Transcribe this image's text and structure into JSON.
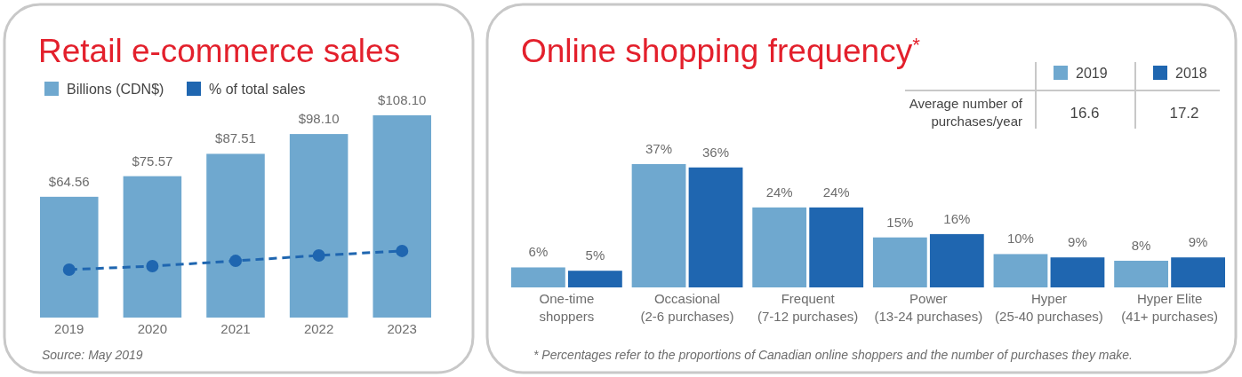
{
  "chart_data": [
    {
      "type": "bar",
      "title": "Retail e-commerce sales",
      "categories": [
        "2019",
        "2020",
        "2021",
        "2022",
        "2023"
      ],
      "legend": "top",
      "series": [
        {
          "name": "Billions (CDN$)",
          "color": "#6fa8cf",
          "values": [
            64.56,
            75.57,
            87.51,
            98.1,
            108.1
          ],
          "value_labels": [
            "$64.56",
            "$75.57",
            "$87.51",
            "$98.10",
            "$108.10"
          ]
        },
        {
          "name": "% of total sales",
          "type": "line",
          "color": "#1f66b0",
          "values": [
            25.6,
            27.5,
            30.3,
            33.2,
            35.6
          ],
          "marker": "circle",
          "line_style": "dashed"
        }
      ],
      "annotations": [
        "Source: May 2019"
      ]
    },
    {
      "type": "bar",
      "title": "Online shopping frequency$^{*}$",
      "categories": [
        "One-time\nshoppers",
        "Occasional\n(2-6 purchases)",
        "Frequent\n(7-12 purchases)",
        "Power\n(13-24 purchases)",
        "Hyper\n(25-40 purchases)",
        "Hyper Elite\n(41+ purchases)"
      ],
      "legend": "top right",
      "series": [
        {
          "name": "2019",
          "color": "#6fa8cf",
          "values": [
            6,
            37,
            24,
            15,
            10,
            8
          ],
          "value_labels": [
            "6%",
            "37%",
            "24%",
            "15%",
            "10%",
            "8%"
          ]
        },
        {
          "name": "2018",
          "color": "#1f66b0",
          "values": [
            5,
            36,
            24,
            16,
            9,
            9
          ],
          "value_labels": [
            "5%",
            "36%",
            "24%",
            "16%",
            "9%",
            "9%"
          ]
        }
      ],
      "annotations": [
        "Average number of\npurchases/year",
        "16.6",
        "17.2",
        "* Percentages refer to the proportions of Canadian online shoppers and the number of purchases they make."
      ]
    }
  ]
}
